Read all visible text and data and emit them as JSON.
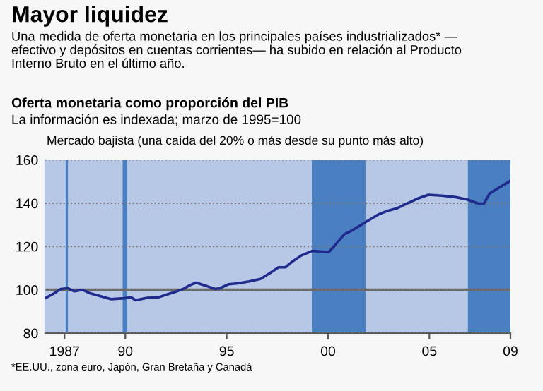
{
  "chart_data": {
    "type": "line",
    "title": "Mayor liquidez",
    "subtitle": "Una medida de oferta monetaria en los principales países industrializados* —\nefectivo y depósitos en cuentas corrientes— ha subido en relación al Producto\nInterno Bruto en el último año.",
    "annotations": [
      "Oferta monetaria como proporción del PIB",
      "La información es indexada; marzo de 1995=100",
      "Mercado bajista (una caída del 20% o más desde su punto más alto)",
      "*EE.UU., zona euro, Japón, Gran Bretaña y Canadá"
    ],
    "series": [
      {
        "color": "#1f2a8c",
        "x": [
          1986.08,
          1986.48,
          1986.82,
          1987.16,
          1987.49,
          1987.89,
          1988.28,
          1988.72,
          1989.28,
          1989.95,
          1990.29,
          1990.51,
          1991.08,
          1991.63,
          1991.97,
          1992.42,
          1992.86,
          1993.2,
          1993.49,
          1993.87,
          1994.43,
          1994.66,
          1995.1,
          1995.55,
          1996.11,
          1996.67,
          1997.12,
          1997.56,
          1997.9,
          1998.23,
          1998.69,
          1999.24,
          2000.03,
          2000.25,
          2000.81,
          2001.15,
          2001.82,
          2002.49,
          2002.94,
          2003.39,
          2003.84,
          2004.39,
          2004.95,
          2005.62,
          2006.3,
          2006.86,
          2007.42,
          2007.69,
          2007.98,
          2009.0
        ],
        "values": [
          96.3,
          98.3,
          100.4,
          100.7,
          99.3,
          100,
          98.3,
          97.2,
          95.7,
          96.1,
          96.5,
          95.2,
          96.3,
          96.5,
          97.6,
          98.9,
          100.4,
          102.2,
          103.3,
          102.2,
          100.4,
          100.7,
          102.6,
          103,
          103.9,
          105,
          107.6,
          110.4,
          110.4,
          113,
          115.9,
          118,
          117.4,
          119.6,
          125.7,
          127.2,
          131.1,
          134.8,
          136.5,
          137.6,
          139.6,
          142,
          143.9,
          143.5,
          142.8,
          141.7,
          139.8,
          139.8,
          144.6,
          150.4
        ]
      }
    ],
    "xlim": [
      1986.05,
      2009.0
    ],
    "xticks": [
      {
        "value": 1987,
        "label": "1987"
      },
      {
        "value": 1990,
        "label": "90"
      },
      {
        "value": 1995,
        "label": "95"
      },
      {
        "value": 2000,
        "label": "00"
      },
      {
        "value": 2005,
        "label": "05"
      },
      {
        "value": 2009,
        "label": "09"
      }
    ],
    "ylim": [
      80,
      160
    ],
    "yticks": [
      80,
      100,
      120,
      140,
      160
    ],
    "grid": "y",
    "ref_lines": [
      {
        "axis": "y",
        "value": 100,
        "color": "#666666"
      }
    ],
    "bands": [
      {
        "axis": "x",
        "from": 1987.06,
        "to": 1987.17,
        "color": "#4a7fc1"
      },
      {
        "axis": "x",
        "from": 1989.87,
        "to": 1990.09,
        "color": "#4a7fc1"
      },
      {
        "axis": "x",
        "from": 1999.2,
        "to": 2001.85,
        "color": "#4a7fc1"
      },
      {
        "axis": "x",
        "from": 2006.9,
        "to": 2009.0,
        "color": "#4a7fc1"
      }
    ],
    "legend": false
  }
}
